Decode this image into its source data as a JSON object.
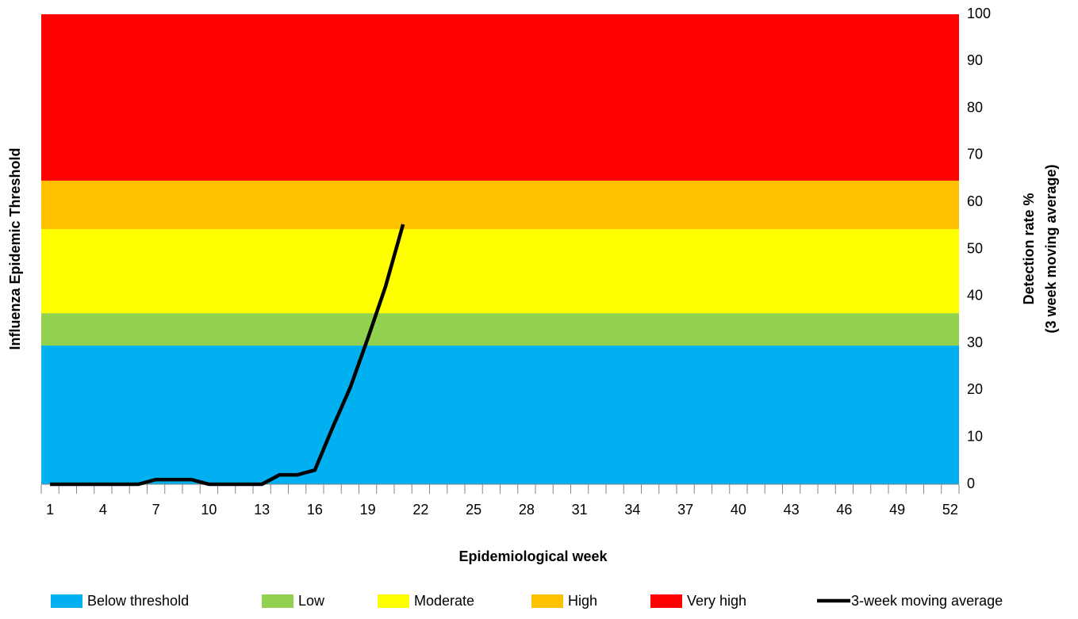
{
  "chart_data": {
    "type": "line",
    "y_label_left": "Influenza Epidemic Threshold",
    "y_label_right": [
      "Detection rate %",
      "(3 week moving average)"
    ],
    "x_label": "Epidemiological week",
    "categories": [
      1,
      null,
      null,
      4,
      null,
      null,
      7,
      null,
      null,
      10,
      null,
      null,
      13,
      null,
      null,
      16,
      null,
      null,
      19,
      null,
      null,
      22,
      null,
      null,
      25,
      null,
      null,
      28,
      null,
      null,
      31,
      null,
      null,
      34,
      null,
      null,
      37,
      null,
      null,
      40,
      null,
      null,
      43,
      null,
      null,
      46,
      null,
      null,
      49,
      null,
      null,
      52
    ],
    "bands": [
      {
        "name": "Below threshold",
        "color": "#00b0f0",
        "value": 29.5
      },
      {
        "name": "Low",
        "color": "#92d050",
        "value": 6.9
      },
      {
        "name": "Moderate",
        "color": "#ffff00",
        "value": 17.9
      },
      {
        "name": "High",
        "color": "#ffc000",
        "value": 10.3
      },
      {
        "name": "Very high",
        "color": "#ff0000",
        "value": 35.4
      }
    ],
    "series": [
      {
        "name": "3-week moving average",
        "color": "#000000",
        "values": [
          0,
          0,
          0,
          0,
          0,
          0,
          1,
          1,
          1,
          0,
          0,
          0,
          0,
          2,
          2,
          3,
          12,
          20.5,
          31,
          42,
          55.3,
          null,
          null,
          null,
          null,
          null,
          null,
          null,
          null,
          null,
          null,
          null,
          null,
          null,
          null,
          null,
          null,
          null,
          null,
          null,
          null,
          null,
          null,
          null,
          null,
          null,
          null,
          null,
          null,
          null,
          null,
          null
        ]
      }
    ],
    "ylim": [
      0,
      100
    ],
    "yticks": [
      0,
      10,
      20,
      30,
      40,
      50,
      60,
      70,
      80,
      90,
      100
    ]
  }
}
